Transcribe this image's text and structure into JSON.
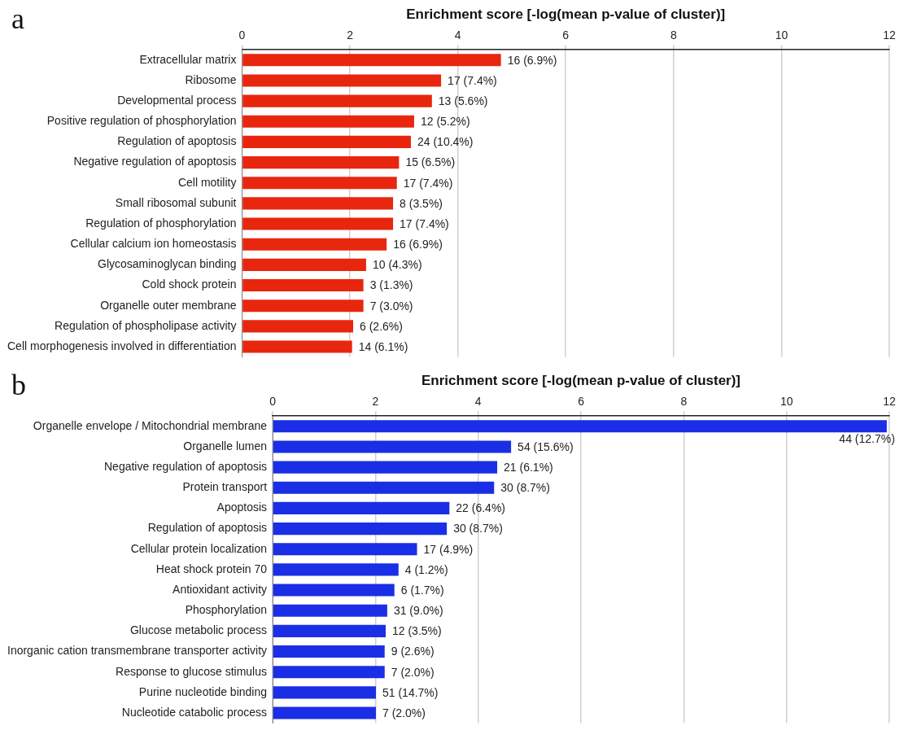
{
  "chart_data": [
    {
      "type": "bar",
      "title": "a",
      "xlabel": "Enrichment score [-log(mean p-value of cluster)]",
      "orientation": "horizontal",
      "categories": [
        "Extracellular matrix",
        "Ribosome",
        "Developmental process",
        "Positive regulation of phosphorylation",
        "Regulation of apoptosis",
        "Negative regulation of apoptosis",
        "Cell motility",
        "Small ribosomal subunit",
        "Regulation of phosphorylation",
        "Cellular calcium ion homeostasis",
        "Glycosaminoglycan binding",
        "Cold shock protein",
        "Organelle outer membrane",
        "Regulation of phospholipase activity",
        "Cell morphogenesis involved in differentiation"
      ],
      "values": [
        4.8,
        3.69,
        3.52,
        3.19,
        3.13,
        2.91,
        2.87,
        2.8,
        2.8,
        2.68,
        2.3,
        2.25,
        2.25,
        2.06,
        2.04
      ],
      "annotations": [
        {
          "text": "16 (6.9%)",
          "x": 4.8,
          "y": "Extracellular matrix"
        },
        {
          "text": "17 (7.4%)",
          "x": 3.69,
          "y": "Ribosome"
        },
        {
          "text": "13 (5.6%)",
          "x": 3.52,
          "y": "Developmental process"
        },
        {
          "text": "12 (5.2%)",
          "x": 3.19,
          "y": "Positive regulation of phosphorylation"
        },
        {
          "text": "24 (10.4%)",
          "x": 3.13,
          "y": "Regulation of apoptosis"
        },
        {
          "text": "15 (6.5%)",
          "x": 2.91,
          "y": "Negative regulation of apoptosis"
        },
        {
          "text": "17 (7.4%)",
          "x": 2.87,
          "y": "Cell motility"
        },
        {
          "text": "8 (3.5%)",
          "x": 2.8,
          "y": "Small ribosomal subunit"
        },
        {
          "text": "17 (7.4%)",
          "x": 2.8,
          "y": "Regulation of phosphorylation"
        },
        {
          "text": "16 (6.9%)",
          "x": 2.68,
          "y": "Cellular calcium ion homeostasis"
        },
        {
          "text": "10 (4.3%)",
          "x": 2.3,
          "y": "Glycosaminoglycan binding"
        },
        {
          "text": "3 (1.3%)",
          "x": 2.25,
          "y": "Cold shock protein"
        },
        {
          "text": "7 (3.0%)",
          "x": 2.25,
          "y": "Organelle outer membrane"
        },
        {
          "text": "6 (2.6%)",
          "x": 2.06,
          "y": "Regulation of phospholipase activity"
        },
        {
          "text": "14 (6.1%)",
          "x": 2.04,
          "y": "Cell morphogenesis involved in differentiation"
        }
      ],
      "color": "#e8260e",
      "xlim": [
        0,
        12
      ],
      "xticks": [
        0,
        2,
        4,
        6,
        8,
        10,
        12
      ],
      "grid": "x"
    },
    {
      "type": "bar",
      "title": "b",
      "xlabel": "Enrichment score [-log(mean p-value of cluster)]",
      "orientation": "horizontal",
      "categories": [
        "Organelle envelope / Mitochondrial membrane",
        "Organelle lumen",
        "Negative regulation of apoptosis",
        "Protein transport",
        "Apoptosis",
        "Regulation of apoptosis",
        "Cellular protein localization",
        "Heat shock protein 70",
        "Antioxidant activity",
        "Phosphorylation",
        "Glucose metabolic process",
        "Inorganic cation transmembrane transporter activity",
        "Response to glucose stimulus",
        "Purine nucleotide binding",
        "Nucleotide catabolic process"
      ],
      "values": [
        11.95,
        4.64,
        4.37,
        4.31,
        3.44,
        3.39,
        2.81,
        2.45,
        2.37,
        2.23,
        2.2,
        2.18,
        2.18,
        2.01,
        2.01
      ],
      "annotations": [
        {
          "text": "44 (12.7%)",
          "x": 11.95,
          "y": "Organelle envelope / Mitochondrial membrane"
        },
        {
          "text": "54 (15.6%)",
          "x": 4.64,
          "y": "Organelle lumen"
        },
        {
          "text": "21 (6.1%)",
          "x": 4.37,
          "y": "Negative regulation of apoptosis"
        },
        {
          "text": "30 (8.7%)",
          "x": 4.31,
          "y": "Protein transport"
        },
        {
          "text": "22 (6.4%)",
          "x": 3.44,
          "y": "Apoptosis"
        },
        {
          "text": "30 (8.7%)",
          "x": 3.39,
          "y": "Regulation of apoptosis"
        },
        {
          "text": "17 (4.9%)",
          "x": 2.81,
          "y": "Cellular protein localization"
        },
        {
          "text": "4 (1.2%)",
          "x": 2.45,
          "y": "Heat shock protein 70"
        },
        {
          "text": "6 (1.7%)",
          "x": 2.37,
          "y": "Antioxidant activity"
        },
        {
          "text": "31 (9.0%)",
          "x": 2.23,
          "y": "Phosphorylation"
        },
        {
          "text": "12 (3.5%)",
          "x": 2.2,
          "y": "Glucose metabolic process"
        },
        {
          "text": "9 (2.6%)",
          "x": 2.18,
          "y": "Inorganic cation transmembrane transporter activity"
        },
        {
          "text": "7 (2.0%)",
          "x": 2.18,
          "y": "Response to glucose stimulus"
        },
        {
          "text": "51 (14.7%)",
          "x": 2.01,
          "y": "Purine nucleotide binding"
        },
        {
          "text": "7 (2.0%)",
          "x": 2.01,
          "y": "Nucleotide catabolic process"
        }
      ],
      "color": "#1a2ee6",
      "xlim": [
        0,
        12
      ],
      "xticks": [
        0,
        2,
        4,
        6,
        8,
        10,
        12
      ],
      "grid": "x"
    }
  ]
}
